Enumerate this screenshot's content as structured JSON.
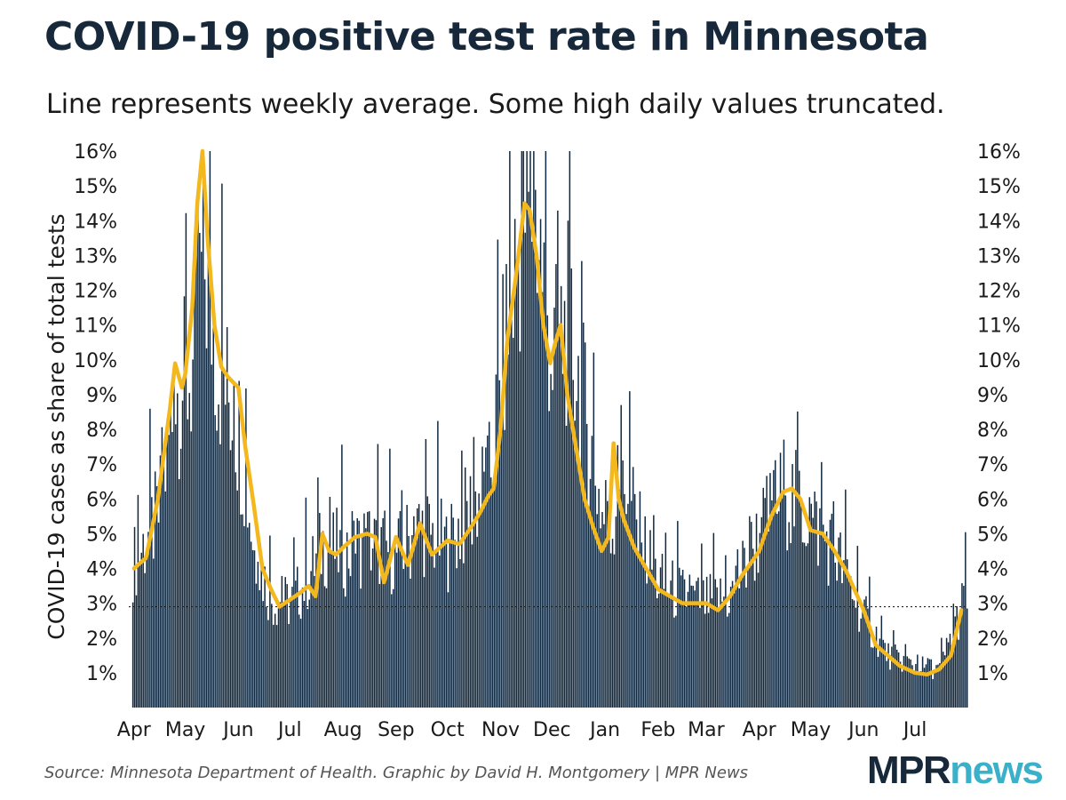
{
  "title": "COVID-19 positive test rate in Minnesota",
  "subtitle": "Line represents weekly average. Some high daily values truncated.",
  "source": "Source: Minnesota Department of Health. Graphic by David H. Montgomery | MPR News",
  "logo": {
    "part1": "MPR",
    "part2": "news",
    "color1": "#16283a",
    "color2": "#3bb0c9"
  },
  "chart_data": {
    "type": "bar",
    "overlay": "line",
    "x_axis": "date",
    "bar_color": "#0f2840",
    "line_color": "#f2b81e",
    "reference_line_value": 2.9,
    "ylabel": "COVID-19 cases as share of total tests",
    "ylim": [
      0,
      16
    ],
    "yticks": [
      "1%",
      "2%",
      "3%",
      "4%",
      "5%",
      "6%",
      "7%",
      "8%",
      "9%",
      "10%",
      "11%",
      "12%",
      "13%",
      "14%",
      "15%",
      "16%"
    ],
    "xticks": [
      "Apr",
      "May",
      "Jun",
      "Jul",
      "Aug",
      "Sep",
      "Oct",
      "Nov",
      "Dec",
      "Jan",
      "Feb",
      "Mar",
      "Apr",
      "May",
      "Jun",
      "Jul"
    ],
    "xtick_dates": [
      "2020-04-01",
      "2020-05-01",
      "2020-06-01",
      "2020-07-01",
      "2020-08-01",
      "2020-09-01",
      "2020-10-01",
      "2020-11-01",
      "2020-12-01",
      "2021-01-01",
      "2021-02-01",
      "2021-03-01",
      "2021-04-01",
      "2021-05-01",
      "2021-06-01",
      "2021-07-01"
    ],
    "series": [
      {
        "kind": "daily",
        "x": [
          "2020-04-01",
          "2020-04-15",
          "2020-04-25",
          "2020-05-05",
          "2020-05-11",
          "2020-05-20",
          "2020-06-01",
          "2020-06-10",
          "2020-06-20",
          "2020-07-01",
          "2020-07-10",
          "2020-07-20",
          "2020-08-01",
          "2020-08-15",
          "2020-09-01",
          "2020-09-15",
          "2020-10-01",
          "2020-10-15",
          "2020-10-25",
          "2020-11-05",
          "2020-11-15",
          "2020-11-22",
          "2020-12-01",
          "2020-12-10",
          "2020-12-20",
          "2021-01-01",
          "2021-01-05",
          "2021-01-10",
          "2021-01-20",
          "2021-02-01",
          "2021-02-15",
          "2021-03-01",
          "2021-03-15",
          "2021-04-01",
          "2021-04-15",
          "2021-05-01",
          "2021-05-15",
          "2021-06-01",
          "2021-06-15",
          "2021-07-01",
          "2021-07-15",
          "2021-07-30"
        ],
        "values": [
          4.2,
          5.5,
          9.0,
          9.6,
          13.0,
          9.8,
          8.0,
          4.5,
          3.1,
          3.0,
          3.6,
          4.7,
          4.4,
          4.8,
          4.4,
          5.2,
          4.6,
          5.8,
          6.5,
          11.0,
          14.5,
          14.0,
          10.0,
          11.0,
          8.5,
          5.0,
          5.2,
          7.2,
          5.0,
          3.6,
          3.2,
          3.0,
          3.2,
          5.0,
          6.2,
          5.4,
          4.5,
          2.6,
          1.5,
          1.2,
          1.1,
          3.2
        ]
      },
      {
        "kind": "weekly-average",
        "x": [
          "2020-04-01",
          "2020-04-08",
          "2020-04-15",
          "2020-04-22",
          "2020-04-25",
          "2020-04-29",
          "2020-05-01",
          "2020-05-05",
          "2020-05-08",
          "2020-05-11",
          "2020-05-14",
          "2020-05-18",
          "2020-05-22",
          "2020-05-26",
          "2020-06-01",
          "2020-06-05",
          "2020-06-10",
          "2020-06-15",
          "2020-06-20",
          "2020-06-25",
          "2020-07-01",
          "2020-07-07",
          "2020-07-12",
          "2020-07-16",
          "2020-07-20",
          "2020-07-24",
          "2020-07-28",
          "2020-08-01",
          "2020-08-08",
          "2020-08-15",
          "2020-08-20",
          "2020-08-25",
          "2020-09-01",
          "2020-09-08",
          "2020-09-15",
          "2020-09-22",
          "2020-10-01",
          "2020-10-08",
          "2020-10-15",
          "2020-10-20",
          "2020-10-25",
          "2020-10-28",
          "2020-11-01",
          "2020-11-05",
          "2020-11-10",
          "2020-11-15",
          "2020-11-18",
          "2020-11-22",
          "2020-11-26",
          "2020-11-30",
          "2020-12-03",
          "2020-12-06",
          "2020-12-10",
          "2020-12-15",
          "2020-12-20",
          "2020-12-25",
          "2020-12-30",
          "2021-01-03",
          "2021-01-06",
          "2021-01-09",
          "2021-01-12",
          "2021-01-18",
          "2021-01-25",
          "2021-02-01",
          "2021-02-08",
          "2021-02-15",
          "2021-02-22",
          "2021-03-01",
          "2021-03-08",
          "2021-03-15",
          "2021-03-22",
          "2021-04-01",
          "2021-04-08",
          "2021-04-15",
          "2021-04-20",
          "2021-04-25",
          "2021-05-01",
          "2021-05-08",
          "2021-05-15",
          "2021-05-22",
          "2021-06-01",
          "2021-06-08",
          "2021-06-15",
          "2021-06-22",
          "2021-07-01",
          "2021-07-08",
          "2021-07-15",
          "2021-07-22",
          "2021-07-28"
        ],
        "values": [
          4.0,
          4.3,
          6.0,
          8.6,
          9.9,
          9.2,
          9.6,
          11.5,
          14.5,
          16.0,
          13.5,
          11.0,
          9.8,
          9.5,
          9.2,
          7.5,
          5.8,
          4.0,
          3.4,
          2.9,
          3.1,
          3.3,
          3.5,
          3.2,
          5.0,
          4.5,
          4.4,
          4.6,
          4.9,
          5.0,
          4.9,
          3.6,
          4.9,
          4.1,
          5.3,
          4.4,
          4.8,
          4.7,
          5.2,
          5.6,
          6.1,
          6.3,
          8.0,
          10.6,
          12.4,
          14.5,
          14.3,
          13.0,
          11.0,
          9.9,
          10.5,
          11.0,
          9.0,
          7.5,
          6.0,
          5.2,
          4.5,
          4.9,
          7.6,
          6.0,
          5.4,
          4.6,
          4.0,
          3.4,
          3.2,
          3.0,
          3.0,
          3.0,
          2.8,
          3.2,
          3.8,
          4.5,
          5.5,
          6.2,
          6.3,
          6.0,
          5.1,
          5.0,
          4.5,
          3.9,
          2.8,
          1.8,
          1.5,
          1.2,
          1.0,
          0.95,
          1.1,
          1.5,
          2.8
        ]
      }
    ]
  }
}
